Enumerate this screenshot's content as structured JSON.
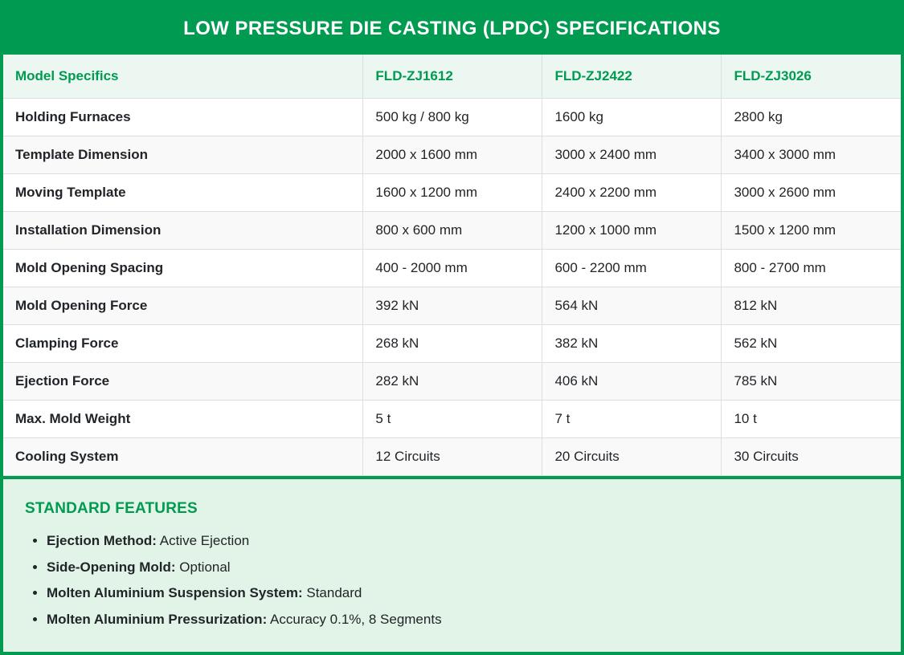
{
  "title": "LOW PRESSURE DIE CASTING (LPDC) SPECIFICATIONS",
  "table": {
    "header": [
      "Model Specifics",
      "FLD-ZJ1612",
      "FLD-ZJ2422",
      "FLD-ZJ3026"
    ],
    "rows": [
      {
        "label": "Holding Furnaces",
        "values": [
          "500 kg / 800 kg",
          "1600 kg",
          "2800 kg"
        ]
      },
      {
        "label": "Template Dimension",
        "values": [
          "2000 x 1600 mm",
          "3000 x 2400 mm",
          "3400 x 3000 mm"
        ]
      },
      {
        "label": "Moving Template",
        "values": [
          "1600 x 1200 mm",
          "2400 x 2200 mm",
          "3000 x 2600 mm"
        ]
      },
      {
        "label": "Installation Dimension",
        "values": [
          "800 x 600 mm",
          "1200 x 1000 mm",
          "1500 x 1200 mm"
        ]
      },
      {
        "label": "Mold Opening Spacing",
        "values": [
          "400 - 2000 mm",
          "600 - 2200 mm",
          "800 - 2700 mm"
        ]
      },
      {
        "label": "Mold Opening Force",
        "values": [
          "392 kN",
          "564 kN",
          "812 kN"
        ]
      },
      {
        "label": "Clamping Force",
        "values": [
          "268 kN",
          "382 kN",
          "562 kN"
        ]
      },
      {
        "label": "Ejection Force",
        "values": [
          "282 kN",
          "406 kN",
          "785 kN"
        ]
      },
      {
        "label": "Max. Mold Weight",
        "values": [
          "5 t",
          "7 t",
          "10 t"
        ]
      },
      {
        "label": "Cooling System",
        "values": [
          "12 Circuits",
          "20 Circuits",
          "30 Circuits"
        ]
      }
    ]
  },
  "features": {
    "title": "STANDARD FEATURES",
    "items": [
      {
        "label": "Ejection Method:",
        "value": "Active Ejection"
      },
      {
        "label": "Side-Opening Mold:",
        "value": "Optional"
      },
      {
        "label": "Molten Aluminium Suspension System:",
        "value": "Standard"
      },
      {
        "label": "Molten Aluminium Pressurization:",
        "value": "Accuracy 0.1%, 8 Segments"
      }
    ]
  },
  "colors": {
    "brand_green": "#009b51",
    "header_row_bg": "#edf7f1",
    "stripe_bg": "#f9f9f9",
    "features_bg": "#e2f3e8",
    "text_dark": "#212529",
    "banner_text": "#ffffff"
  }
}
